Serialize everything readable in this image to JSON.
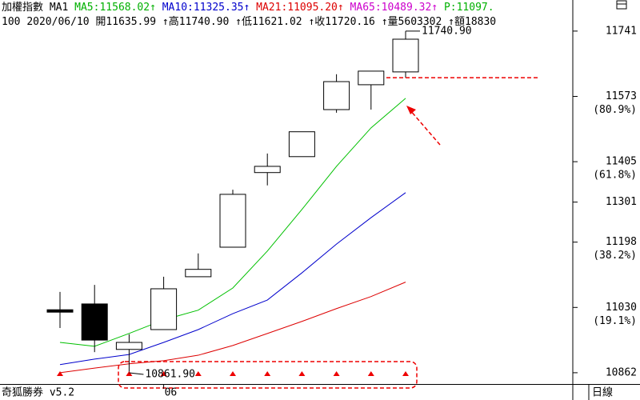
{
  "chart_data": {
    "type": "candlestick",
    "legend": [
      {
        "text": "加權指數",
        "color": "#000000"
      },
      {
        "text": "MA1",
        "color": "#000000"
      },
      {
        "text": "MA5:11568.02↑",
        "color": "#00b000"
      },
      {
        "text": "MA10:11325.35↑",
        "color": "#0000cc"
      },
      {
        "text": "MA21:11095.20↑",
        "color": "#dd0000"
      },
      {
        "text": "MA65:10489.32↑",
        "color": "#cc00cc"
      },
      {
        "text": "P:11097.",
        "color": "#00b000"
      }
    ],
    "info": [
      "100",
      "2020/06/10",
      "開11635.99",
      "↑高11740.90",
      "↑低11621.02",
      "↑收11720.16",
      "↑量5603302",
      "↑額18830"
    ],
    "categories": [
      null,
      null,
      null,
      null,
      null,
      null,
      null,
      null,
      null,
      null,
      null
    ],
    "open": [
      11024,
      11039,
      10922,
      10973,
      11109,
      11185,
      11377,
      11418,
      11539,
      11603,
      11635.99
    ],
    "high": [
      11070,
      11088,
      10961,
      11109,
      11169,
      11333,
      11426,
      11482,
      11630,
      11638,
      11740.9
    ],
    "low": [
      10977,
      10915,
      10861.9,
      10973,
      11109,
      11185,
      11344,
      11418,
      11531,
      11539,
      11621.02
    ],
    "close": [
      11020,
      10946,
      10940,
      11078,
      11128,
      11321,
      11393,
      11482,
      11611,
      11638,
      11720.16
    ],
    "lines": [
      {
        "color": "#00c000",
        "values": [
          10940,
          10930,
          10963,
          10998,
          11023,
          11080,
          11175,
          11282,
          11393,
          11492,
          11568.02
        ]
      },
      {
        "color": "#0000cc",
        "values": [
          10883,
          10897,
          10909,
          10940,
          10973,
          11014,
          11049,
          11119,
          11193,
          11261,
          11325.35
        ]
      },
      {
        "color": "#dd0000",
        "values": [
          10862,
          10874,
          10885,
          10893,
          10907,
          10932,
          10963,
          10994,
          11027,
          11058,
          11095.2
        ]
      }
    ],
    "signals": [
      true,
      false,
      true,
      true,
      true,
      true,
      true,
      true,
      true,
      true,
      true
    ],
    "annotations": [
      "11740.90",
      "10861.90"
    ],
    "ylim": [
      10833,
      11821
    ],
    "yticks": [
      10862,
      11030,
      11198,
      11301,
      11405,
      11573,
      11741
    ],
    "ytick_notes": [
      null,
      "(19.1%)",
      "(38.2%)",
      null,
      "(61.8%)",
      "(80.9%)",
      null
    ],
    "xticks": [
      {
        "value": 3,
        "label": "06"
      }
    ],
    "footer_left": "奇狐勝券 v5.2",
    "footer_right": "日線"
  }
}
